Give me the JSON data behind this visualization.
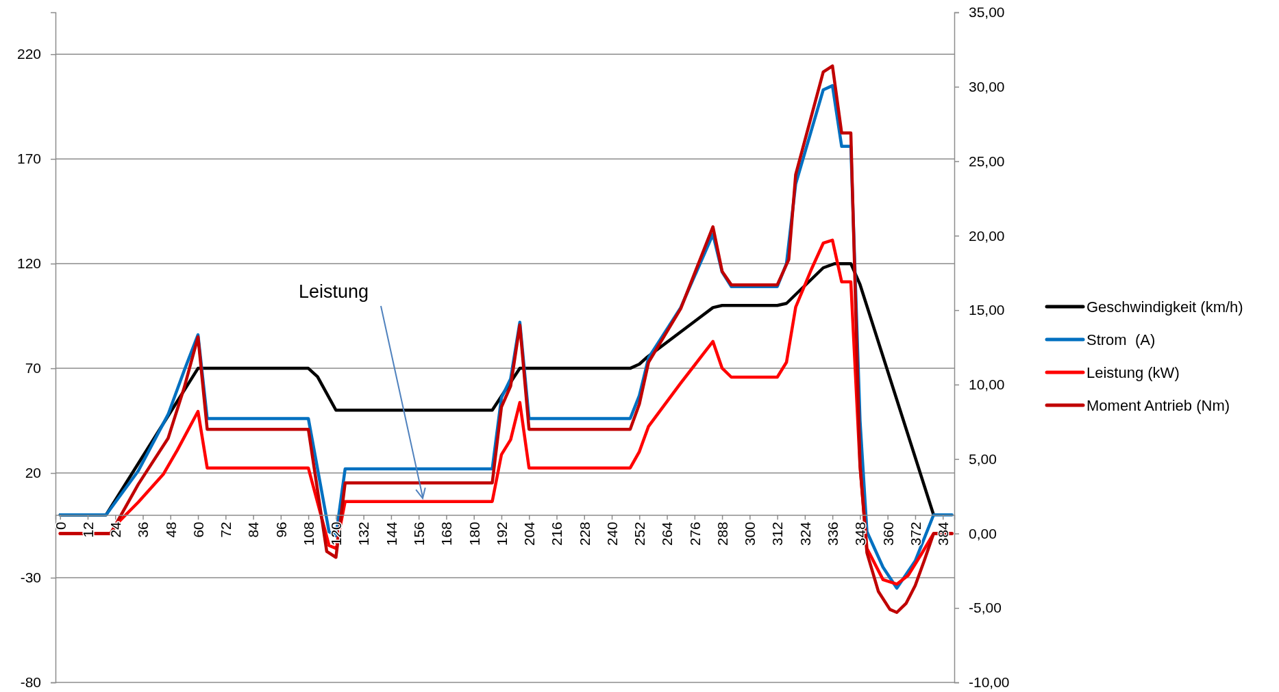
{
  "chart_data": {
    "type": "line",
    "xlim": [
      -2,
      389
    ],
    "xticks": [
      0,
      12,
      24,
      36,
      48,
      60,
      72,
      84,
      96,
      108,
      120,
      132,
      144,
      156,
      168,
      180,
      192,
      204,
      216,
      228,
      240,
      252,
      264,
      276,
      288,
      300,
      312,
      324,
      336,
      348,
      360,
      372,
      384
    ],
    "ylim": [
      -80,
      240
    ],
    "yticks": [
      -80,
      -30,
      20,
      70,
      120,
      170,
      220
    ],
    "y2lim": [
      -10,
      35
    ],
    "y2ticks": [
      {
        "value": -10,
        "label": "-10,00"
      },
      {
        "value": -5,
        "label": "-5,00"
      },
      {
        "value": 0,
        "label": "0,00"
      },
      {
        "value": 5,
        "label": "5,00"
      },
      {
        "value": 10,
        "label": "10,00"
      },
      {
        "value": 15,
        "label": "15,00"
      },
      {
        "value": 20,
        "label": "20,00"
      },
      {
        "value": 25,
        "label": "25,00"
      },
      {
        "value": 30,
        "label": "30,00"
      },
      {
        "value": 35,
        "label": "35,00"
      }
    ],
    "grid": "y",
    "legend": "right",
    "marker": "none",
    "line_style": "solid",
    "annotations": [
      "Leistung"
    ],
    "series": [
      {
        "name": "Geschwindigkeit (km/h)",
        "color": "#000000",
        "x": [
          0,
          20,
          60,
          108,
          112,
          120,
          188,
          200,
          248,
          252,
          255,
          284,
          288,
          312,
          316,
          332,
          337,
          344,
          348,
          380
        ],
        "values": [
          0,
          0,
          70,
          70,
          66,
          50,
          50,
          70,
          70,
          72,
          75,
          99,
          100,
          100,
          101,
          118,
          120,
          120,
          110,
          0
        ]
      },
      {
        "name": "Strom  (A)",
        "color": "#0070c0",
        "x": [
          0,
          20,
          34,
          47,
          54,
          60,
          64,
          108,
          117,
          120,
          124,
          188,
          192,
          196,
          200,
          204,
          248,
          252,
          256,
          270,
          284,
          288,
          292,
          312,
          316,
          320,
          332,
          336,
          340,
          344,
          348,
          351,
          358,
          364,
          372,
          380,
          388
        ],
        "values": [
          0,
          0,
          21,
          48,
          69,
          86,
          46,
          46,
          -8,
          -10,
          22,
          22,
          56,
          65,
          92,
          46,
          46,
          57,
          75,
          99,
          134,
          116,
          109,
          109,
          120,
          158,
          203,
          205,
          176,
          176,
          45,
          -8,
          -25,
          -35,
          -22,
          0,
          0
        ]
      },
      {
        "name": "Leistung (kW)",
        "color": "#ff0000",
        "axis": "y2",
        "x": [
          0,
          22,
          25,
          34,
          45,
          51,
          60,
          64,
          108,
          117,
          120,
          124,
          188,
          192,
          196,
          200,
          204,
          248,
          252,
          256,
          270,
          284,
          288,
          292,
          312,
          316,
          320,
          327,
          332,
          336,
          340,
          344,
          348,
          351,
          358,
          364,
          369,
          375,
          380,
          388
        ],
        "values": [
          0,
          0,
          0.7,
          2.1,
          4,
          5.6,
          8.2,
          4.4,
          4.4,
          -0.8,
          -1,
          2.15,
          2.15,
          5.3,
          6.3,
          8.8,
          4.4,
          4.4,
          5.5,
          7.2,
          10.1,
          12.9,
          11.1,
          10.5,
          10.5,
          11.5,
          15.2,
          17.8,
          19.5,
          19.7,
          16.9,
          16.9,
          4.5,
          -1,
          -3.1,
          -3.4,
          -2.8,
          -1.3,
          0,
          0
        ]
      },
      {
        "name": "Moment Antrieb (Nm)",
        "color": "#c00000",
        "axis": "y2",
        "x": [
          0,
          22,
          34,
          47,
          54,
          60,
          64,
          108,
          116,
          120,
          124,
          188,
          192,
          196,
          200,
          204,
          248,
          252,
          256,
          270,
          284,
          288,
          292,
          312,
          317,
          320,
          332,
          336,
          340,
          344,
          348,
          351,
          356,
          361,
          364,
          368,
          372,
          376,
          380,
          388
        ],
        "values": [
          0,
          0,
          3.3,
          6.4,
          9.8,
          13.2,
          7,
          7,
          -1.2,
          -1.6,
          3.4,
          3.4,
          8.5,
          9.9,
          14,
          7,
          7,
          8.7,
          11.5,
          15.1,
          20.6,
          17.6,
          16.7,
          16.7,
          18.4,
          24.1,
          31,
          31.4,
          26.9,
          26.9,
          4.6,
          -1.3,
          -3.9,
          -5.1,
          -5.3,
          -4.7,
          -3.5,
          -1.8,
          0,
          0
        ]
      }
    ]
  }
}
